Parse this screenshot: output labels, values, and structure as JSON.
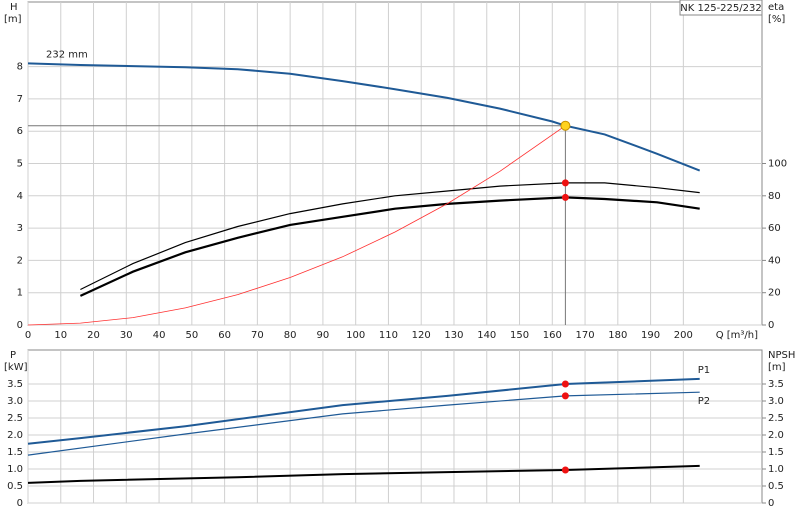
{
  "chart_data": [
    {
      "type": "line",
      "title": "NK 125-225/232",
      "annotation": "232 mm",
      "ylabel": "H",
      "yunit": "[m]",
      "y2label": "eta",
      "y2unit": "[%]",
      "xlabel": "Q [m³/h]",
      "xlim": [
        0,
        224
      ],
      "xticks": [
        0,
        10,
        20,
        30,
        40,
        50,
        60,
        70,
        80,
        90,
        100,
        110,
        120,
        130,
        140,
        150,
        160,
        170,
        180,
        190,
        200
      ],
      "ylim": [
        0,
        10
      ],
      "yticks": [
        0,
        1,
        2,
        3,
        4,
        5,
        6,
        7,
        8
      ],
      "y2lim": [
        0,
        200
      ],
      "y2ticks": [
        0,
        20,
        40,
        60,
        80,
        100
      ],
      "grid": true,
      "duty_point": {
        "x": 164,
        "y": 6.17,
        "color": "#ffd21f"
      },
      "series": [
        {
          "color": "#1f5a96",
          "line_width": 2,
          "x": [
            0,
            16,
            48,
            64,
            80,
            96,
            112,
            128,
            144,
            160,
            164,
            176,
            192,
            205
          ],
          "values": [
            8.1,
            8.05,
            7.98,
            7.92,
            7.78,
            7.55,
            7.3,
            7.03,
            6.7,
            6.3,
            6.17,
            5.9,
            5.3,
            4.78
          ]
        },
        {
          "color": "#000000",
          "line_width": 1.2,
          "axis": "y2",
          "x": [
            16,
            32,
            48,
            64,
            80,
            96,
            112,
            128,
            144,
            164,
            176,
            192,
            205
          ],
          "values": [
            22,
            38,
            51,
            61,
            69,
            75,
            80,
            83,
            86,
            88,
            88,
            85,
            82
          ],
          "duty_value": 88,
          "duty_color": "#ee1111"
        },
        {
          "color": "#000000",
          "line_width": 2.2,
          "axis": "y2",
          "x": [
            16,
            32,
            48,
            64,
            80,
            96,
            112,
            128,
            144,
            164,
            176,
            192,
            205
          ],
          "values": [
            18,
            33,
            45,
            54,
            62,
            67,
            72,
            75,
            77,
            79,
            78,
            76,
            72
          ],
          "duty_value": 79,
          "duty_color": "#ee1111"
        },
        {
          "color": "#ff3030",
          "line_width": 0.8,
          "x": [
            0,
            16,
            32,
            48,
            64,
            80,
            96,
            112,
            128,
            144,
            164
          ],
          "values": [
            0,
            0.06,
            0.23,
            0.53,
            0.94,
            1.47,
            2.11,
            2.88,
            3.76,
            4.76,
            6.17
          ]
        }
      ]
    },
    {
      "type": "line",
      "ylabel": "P",
      "yunit": "[kW]",
      "y2label": "NPSH",
      "y2unit": "[m]",
      "xlim": [
        0,
        224
      ],
      "xticks": [
        0,
        10,
        20,
        30,
        40,
        50,
        60,
        70,
        80,
        90,
        100,
        110,
        120,
        130,
        140,
        150,
        160,
        170,
        180,
        190,
        200
      ],
      "ylim": [
        0,
        4.5
      ],
      "yticks": [
        0,
        0.5,
        {
          "value": 1,
          "label": "1.0"
        },
        1.5,
        {
          "value": 2,
          "label": "2.0"
        },
        2.5,
        {
          "value": 3,
          "label": "3.0"
        },
        3.5
      ],
      "y2lim": [
        0,
        4.5
      ],
      "y2ticks": [
        0,
        0.5,
        {
          "value": 1,
          "label": "1.0"
        },
        1.5,
        {
          "value": 2,
          "label": "2.0"
        },
        2.5,
        {
          "value": 3,
          "label": "3.0"
        },
        3.5
      ],
      "grid": true,
      "duty_point": {
        "x": 164
      },
      "series": [
        {
          "name": "P1",
          "color": "#1f5a96",
          "line_width": 2,
          "x": [
            0,
            16,
            48,
            96,
            128,
            164,
            205
          ],
          "values": [
            1.74,
            1.91,
            2.26,
            2.88,
            3.15,
            3.5,
            3.65
          ],
          "duty_value": 3.5,
          "duty_color": "#ee1111"
        },
        {
          "name": "P2",
          "color": "#1f5a96",
          "line_width": 1.2,
          "x": [
            0,
            48,
            96,
            128,
            164,
            205
          ],
          "values": [
            1.41,
            2.03,
            2.62,
            2.88,
            3.15,
            3.26
          ],
          "duty_value": 3.15,
          "duty_color": "#ee1111"
        },
        {
          "color": "#000000",
          "line_width": 2,
          "axis": "y2",
          "x": [
            0,
            16,
            64,
            96,
            128,
            164,
            205
          ],
          "values": [
            0.59,
            0.65,
            0.76,
            0.85,
            0.91,
            0.97,
            1.09
          ],
          "duty_value": 0.97,
          "duty_color": "#ee1111"
        }
      ]
    }
  ]
}
